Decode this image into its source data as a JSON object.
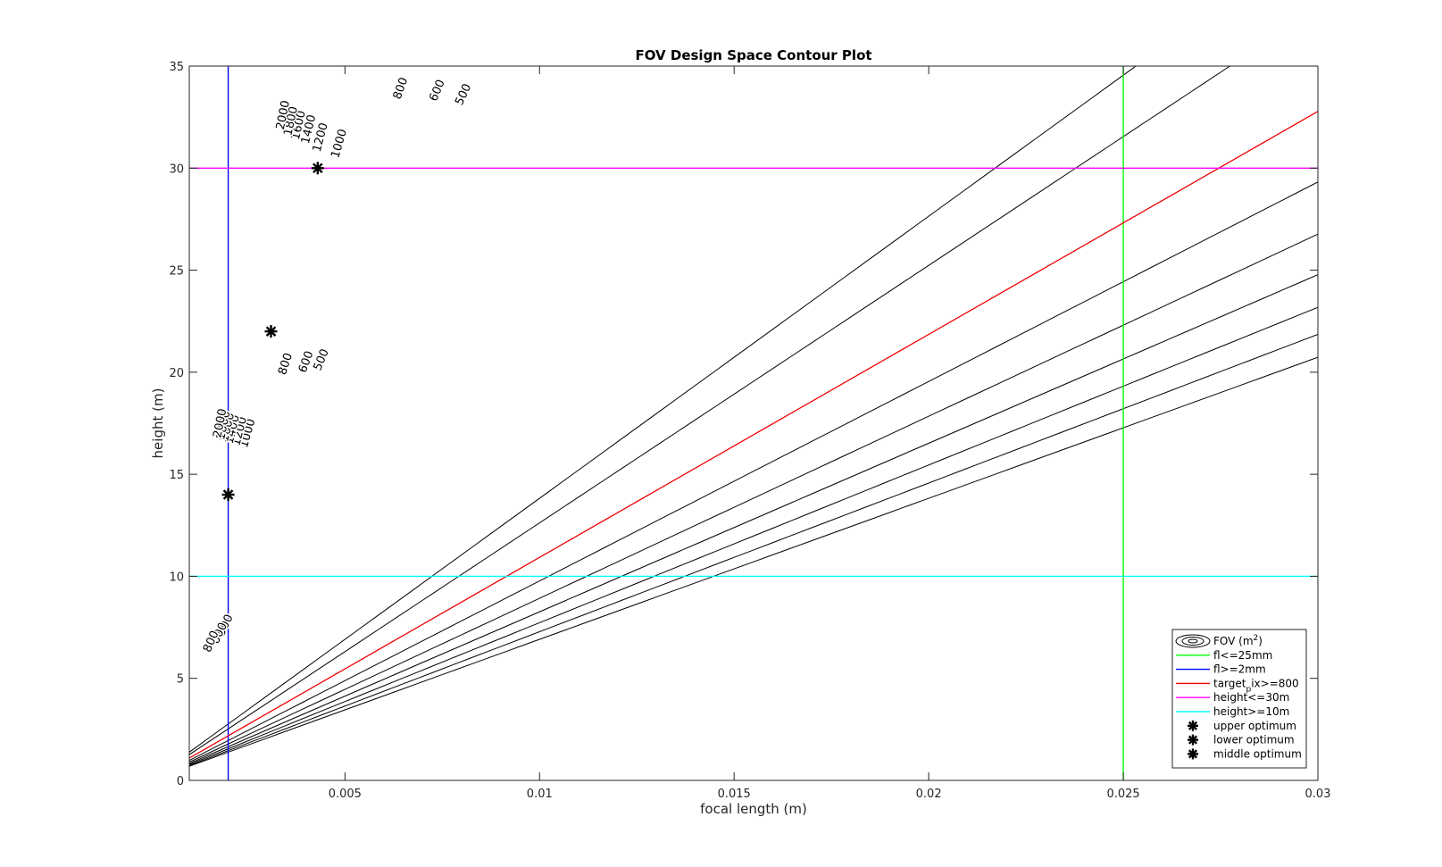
{
  "chart_data": {
    "type": "contour",
    "title": "FOV Design Space Contour Plot",
    "xlabel": "focal length (m)",
    "ylabel": "height (m)",
    "xlim": [
      0.001,
      0.03
    ],
    "ylim": [
      0,
      35
    ],
    "xticks": [
      0.005,
      0.01,
      0.015,
      0.02,
      0.025,
      0.03
    ],
    "xtick_labels": [
      "0.005",
      "0.01",
      "0.015",
      "0.02",
      "0.025",
      "0.03"
    ],
    "yticks": [
      0,
      5,
      10,
      15,
      20,
      25,
      30,
      35
    ],
    "ytick_labels": [
      "0",
      "5",
      "10",
      "15",
      "20",
      "25",
      "30",
      "35"
    ],
    "grid": false,
    "legend_position": "bottom-right",
    "contour_model": "height = k * focal_length / sqrt(level)",
    "contour_k": 30906,
    "contour_levels": [
      500,
      600,
      800,
      1000,
      1200,
      1400,
      1600,
      1800,
      2000
    ],
    "contour_labels": [
      {
        "text": "500",
        "x": 0.00193,
        "y": 7.6
      },
      {
        "text": "600",
        "x": 0.00178,
        "y": 7.2
      },
      {
        "text": "800",
        "x": 0.00157,
        "y": 6.8
      },
      {
        "text": "500",
        "x": 0.0044,
        "y": 20.6
      },
      {
        "text": "600",
        "x": 0.00401,
        "y": 20.5
      },
      {
        "text": "800",
        "x": 0.00348,
        "y": 20.4
      },
      {
        "text": "1000",
        "x": 0.00251,
        "y": 17.0
      },
      {
        "text": "1200",
        "x": 0.0023,
        "y": 17.1
      },
      {
        "text": "1400",
        "x": 0.00212,
        "y": 17.2
      },
      {
        "text": "1600",
        "x": 0.00199,
        "y": 17.3
      },
      {
        "text": "1800",
        "x": 0.00189,
        "y": 17.4
      },
      {
        "text": "2000",
        "x": 0.0018,
        "y": 17.5
      },
      {
        "text": "500",
        "x": 0.00805,
        "y": 33.6
      },
      {
        "text": "600",
        "x": 0.00738,
        "y": 33.8
      },
      {
        "text": "800",
        "x": 0.00644,
        "y": 33.9
      },
      {
        "text": "1000",
        "x": 0.00486,
        "y": 31.2
      },
      {
        "text": "1200",
        "x": 0.00438,
        "y": 31.5
      },
      {
        "text": "1400",
        "x": 0.00408,
        "y": 31.9
      },
      {
        "text": "1600",
        "x": 0.00382,
        "y": 32.1
      },
      {
        "text": "1800",
        "x": 0.00362,
        "y": 32.3
      },
      {
        "text": "2000",
        "x": 0.00342,
        "y": 32.6
      }
    ],
    "constraints": [
      {
        "name": "fl<=25mm",
        "orientation": "vertical",
        "value": 0.025,
        "color": "#00ff00"
      },
      {
        "name": "fl>=2mm",
        "orientation": "vertical",
        "value": 0.002,
        "color": "#0000ff"
      },
      {
        "name": "target_pix>=800",
        "orientation": "curve",
        "level": 800,
        "color": "#ff0000"
      },
      {
        "name": "height<=30m",
        "orientation": "horizontal",
        "value": 30,
        "color": "#ff00ff"
      },
      {
        "name": "height>=10m",
        "orientation": "horizontal",
        "value": 10,
        "color": "#00ffff"
      }
    ],
    "points": [
      {
        "name": "upper optimum",
        "x": 0.0043,
        "y": 30
      },
      {
        "name": "lower optimum",
        "x": 0.002,
        "y": 14
      },
      {
        "name": "middle optimum",
        "x": 0.0031,
        "y": 22
      }
    ],
    "legend": [
      {
        "kind": "contour",
        "label_main": "FOV (m",
        "label_sup": "2",
        "label_end": ")"
      },
      {
        "kind": "line",
        "color": "#00ff00",
        "label_main": "fl<=25mm"
      },
      {
        "kind": "line",
        "color": "#0000ff",
        "label_main": "fl>=2mm"
      },
      {
        "kind": "line",
        "color": "#ff0000",
        "label_main": "target",
        "label_sub": "p",
        "label_end": "ix>=800"
      },
      {
        "kind": "line",
        "color": "#ff00ff",
        "label_main": "height<=30m"
      },
      {
        "kind": "line",
        "color": "#00ffff",
        "label_main": "height>=10m"
      },
      {
        "kind": "marker",
        "label_main": "upper optimum"
      },
      {
        "kind": "marker",
        "label_main": "lower optimum"
      },
      {
        "kind": "marker",
        "label_main": "middle optimum"
      }
    ]
  }
}
